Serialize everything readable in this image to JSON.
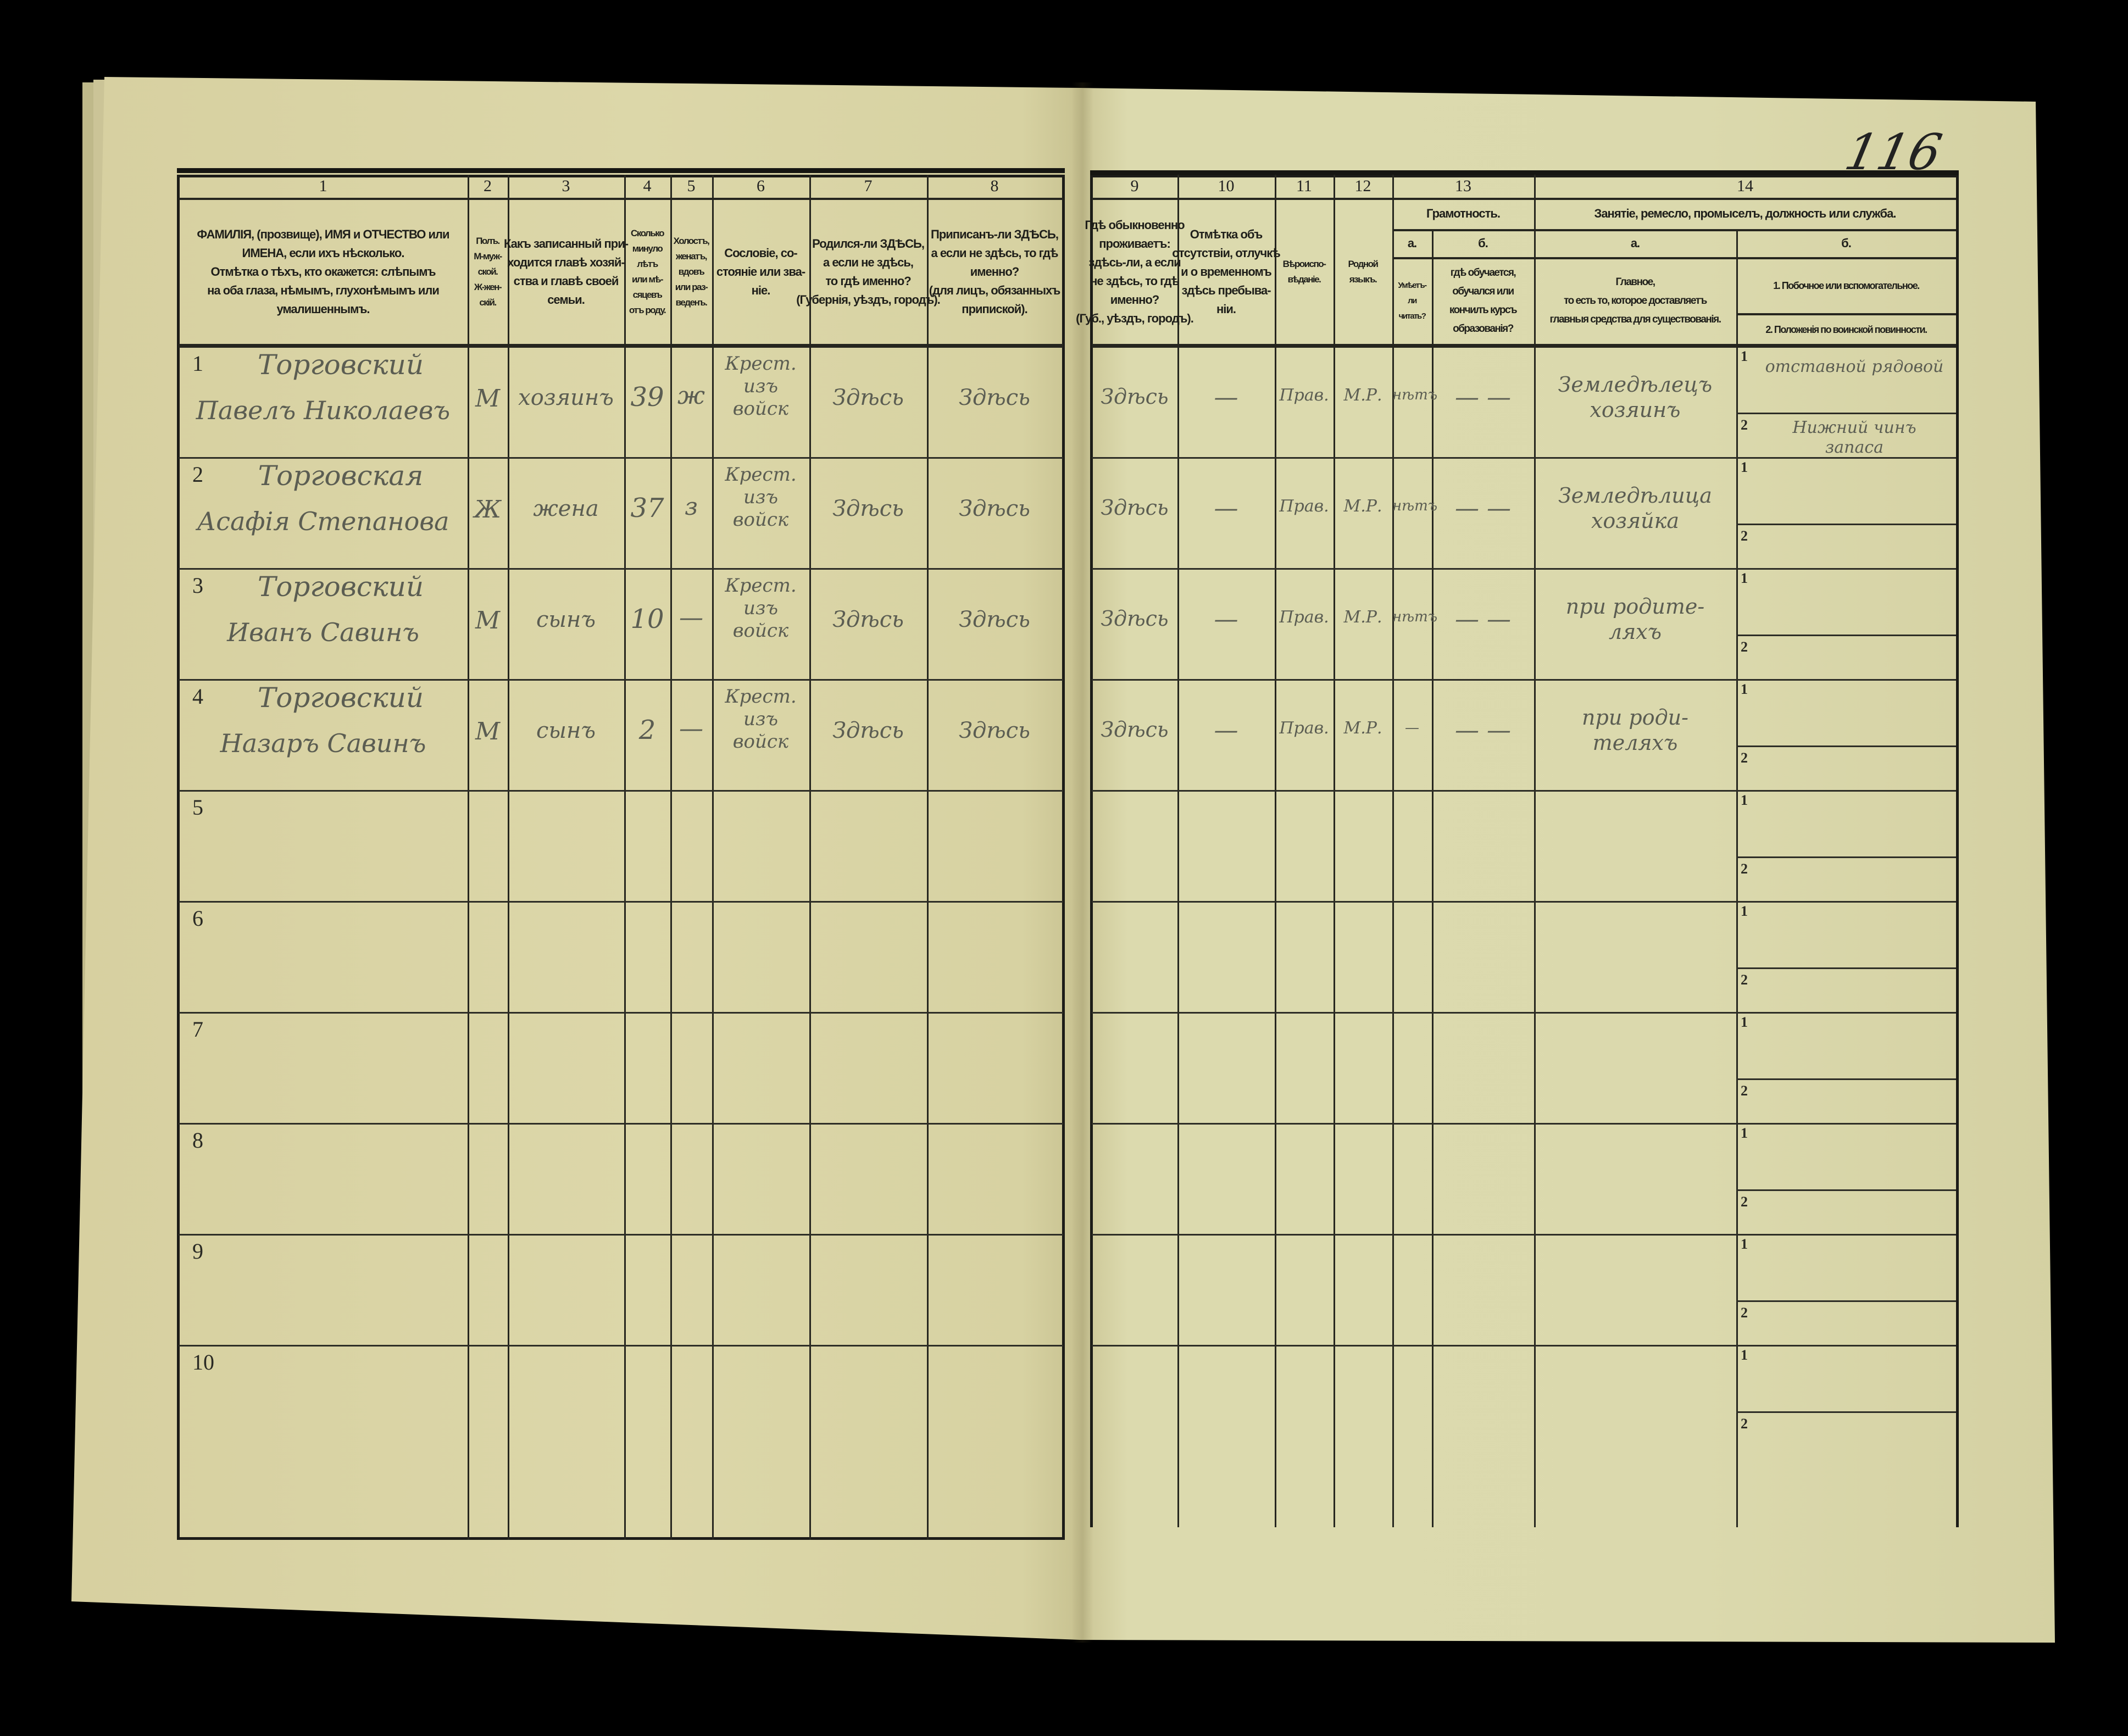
{
  "page_number": "116",
  "header": {
    "column_numbers": [
      "1",
      "2",
      "3",
      "4",
      "5",
      "6",
      "7",
      "8",
      "9",
      "10",
      "11",
      "12",
      "13",
      "14"
    ],
    "columns": {
      "c1": "ФАМИЛІЯ, (прозвище), ИМЯ и ОТЧЕСТВО или\nИМЕНА, если ихъ нѣсколько.\nОтмѣтка о тѣхъ, кто окажется: слѣпымъ\nна оба глаза, нѣмымъ, глухонѣмымъ или\nумалишеннымъ.",
      "c2": "Полъ.\nМ-муж-\nской.\nЖ-жен-\nскій.",
      "c3": "Какъ записанный при-\nходится главѣ хозяй-\nства и главѣ своей\nсемьи.",
      "c4": "Сколько\nминуло\nлѣтъ\nили мѣ-\nсяцевъ\nотъ роду.",
      "c5": "Холостъ,\nженатъ,\nвдовъ\nили раз-\nведенъ.",
      "c6": "Сословіе, со-\nстояніе или зва-\nніе.",
      "c7": "Родился-ли ЗДѢСЬ,\nа если не здѣсь,\nто гдѣ именно?\n(Губернія, уѣздъ, городъ).",
      "c8": "Приписанъ-ли ЗДѢСЬ,\nа если не здѣсь, то гдѣ\nименно?\n(для лицъ, обязанныхъ\nприпиской).",
      "c9": "Гдѣ обыкновенно\nпроживаетъ:\nздѣсь-ли, а если\nне здѣсь, то гдѣ\nименно?\n(Губ., уѣздъ, городъ).",
      "c10": "Отмѣтка объ\nотсутствіи, отлучкѣ\nи о временномъ\nздѣсь пребыва-\nніи.",
      "c11": "Вѣроиспо-\nвѣданіе.",
      "c12": "Родной\nязыкъ."
    },
    "literacy": {
      "title": "Грамотность.",
      "a_label": "а.",
      "b_label": "б.",
      "a_text": "Умѣетъ-\nли\nчитать?",
      "b_text": "гдѣ обучается,\nобучался или\nкончилъ курсъ\nобразованія?"
    },
    "occupation": {
      "title": "Занятіе, ремесло, промыселъ, должность или служба.",
      "a_label": "а.",
      "b_label": "б.",
      "a_text": "Главное,\nто есть то, которое доставляетъ\nглавныя средства для существованія.",
      "b1_text": "1. Побочное или вспомогательное.",
      "b2_text": "2. Положенія по воинской повинности."
    }
  },
  "subrow_labels": [
    "1",
    "2"
  ],
  "rows": [
    {
      "num": "1",
      "surname": "Торговский",
      "given": "Павелъ Николаевъ",
      "sex": "М",
      "relation": "хозяинъ",
      "age": "39",
      "marital": "ж",
      "estate": "Крест.\nизъ\nвойск",
      "birthplace": "Здѣсь",
      "registered": "Здѣсь",
      "residence": "Здѣсь",
      "absence": "—",
      "religion": "Прав.",
      "language": "М.Р.",
      "can_read": "нѣтъ",
      "education": "— —",
      "occupation_main": "Земледѣлецъ\nхозяинъ",
      "occupation_side": "отставной рядовой",
      "military": "Нижний чинъ\nзапаса"
    },
    {
      "num": "2",
      "surname": "Торговская",
      "given": "Асафія Степанова",
      "sex": "Ж",
      "relation": "жена",
      "age": "37",
      "marital": "з",
      "estate": "Крест.\nизъ\nвойск",
      "birthplace": "Здѣсь",
      "registered": "Здѣсь",
      "residence": "Здѣсь",
      "absence": "—",
      "religion": "Прав.",
      "language": "М.Р.",
      "can_read": "нѣтъ",
      "education": "— —",
      "occupation_main": "Земледѣлица\nхозяйка",
      "occupation_side": "",
      "military": ""
    },
    {
      "num": "3",
      "surname": "Торговский",
      "given": "Иванъ Савинъ",
      "sex": "М",
      "relation": "сынъ",
      "age": "10",
      "marital": "—",
      "estate": "Крест.\nизъ\nвойск",
      "birthplace": "Здѣсь",
      "registered": "Здѣсь",
      "residence": "Здѣсь",
      "absence": "—",
      "religion": "Прав.",
      "language": "М.Р.",
      "can_read": "нѣтъ",
      "education": "— —",
      "occupation_main": "при родите-\nляхъ",
      "occupation_side": "",
      "military": ""
    },
    {
      "num": "4",
      "surname": "Торговский",
      "given": "Назаръ Савинъ",
      "sex": "М",
      "relation": "сынъ",
      "age": "2",
      "marital": "—",
      "estate": "Крест.\nизъ\nвойск",
      "birthplace": "Здѣсь",
      "registered": "Здѣсь",
      "residence": "Здѣсь",
      "absence": "—",
      "religion": "Прав.",
      "language": "М.Р.",
      "can_read": "—",
      "education": "— —",
      "occupation_main": "при роди-\nтеляхъ",
      "occupation_side": "",
      "military": ""
    },
    {
      "num": "5"
    },
    {
      "num": "6"
    },
    {
      "num": "7"
    },
    {
      "num": "8"
    },
    {
      "num": "9"
    },
    {
      "num": "10"
    }
  ]
}
